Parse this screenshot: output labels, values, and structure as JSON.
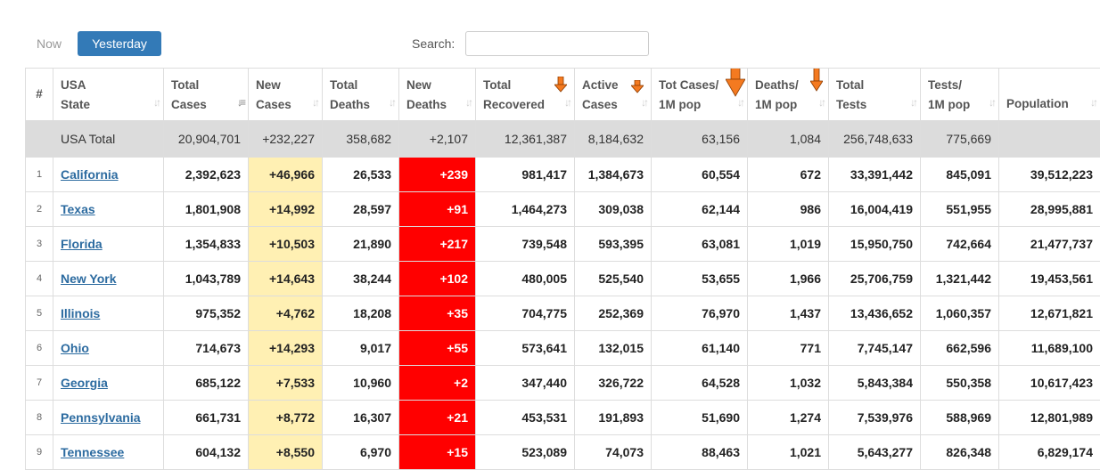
{
  "tabs": {
    "now": "Now",
    "yesterday": "Yesterday"
  },
  "search": {
    "label": "Search:",
    "value": "",
    "placeholder": ""
  },
  "colors": {
    "accent": "#337ab7",
    "new_cases_bg": "#fff0b3",
    "new_deaths_bg": "#ff0000",
    "total_row_bg": "#dcdcdc",
    "annotation_arrow": "#f47a20"
  },
  "table": {
    "headers": [
      {
        "line1": "#",
        "line2": ""
      },
      {
        "line1": "USA",
        "line2": "State"
      },
      {
        "line1": "Total",
        "line2": "Cases"
      },
      {
        "line1": "New",
        "line2": "Cases"
      },
      {
        "line1": "Total",
        "line2": "Deaths"
      },
      {
        "line1": "New",
        "line2": "Deaths"
      },
      {
        "line1": "Total",
        "line2": "Recovered"
      },
      {
        "line1": "Active",
        "line2": "Cases"
      },
      {
        "line1": "Tot Cases/",
        "line2": "1M pop"
      },
      {
        "line1": "Deaths/",
        "line2": "1M pop"
      },
      {
        "line1": "Total",
        "line2": "Tests"
      },
      {
        "line1": "Tests/",
        "line2": "1M pop"
      },
      {
        "line1": "Population",
        "line2": ""
      }
    ],
    "total_row": {
      "label": "USA Total",
      "total_cases": "20,904,701",
      "new_cases": "+232,227",
      "total_deaths": "358,682",
      "new_deaths": "+2,107",
      "total_recovered": "12,361,387",
      "active_cases": "8,184,632",
      "cases_per_1m": "63,156",
      "deaths_per_1m": "1,084",
      "total_tests": "256,748,633",
      "tests_per_1m": "775,669",
      "population": ""
    },
    "rows": [
      {
        "rank": "1",
        "state": "California",
        "total_cases": "2,392,623",
        "new_cases": "+46,966",
        "total_deaths": "26,533",
        "new_deaths": "+239",
        "total_recovered": "981,417",
        "active_cases": "1,384,673",
        "cases_per_1m": "60,554",
        "deaths_per_1m": "672",
        "total_tests": "33,391,442",
        "tests_per_1m": "845,091",
        "population": "39,512,223"
      },
      {
        "rank": "2",
        "state": "Texas",
        "total_cases": "1,801,908",
        "new_cases": "+14,992",
        "total_deaths": "28,597",
        "new_deaths": "+91",
        "total_recovered": "1,464,273",
        "active_cases": "309,038",
        "cases_per_1m": "62,144",
        "deaths_per_1m": "986",
        "total_tests": "16,004,419",
        "tests_per_1m": "551,955",
        "population": "28,995,881"
      },
      {
        "rank": "3",
        "state": "Florida",
        "total_cases": "1,354,833",
        "new_cases": "+10,503",
        "total_deaths": "21,890",
        "new_deaths": "+217",
        "total_recovered": "739,548",
        "active_cases": "593,395",
        "cases_per_1m": "63,081",
        "deaths_per_1m": "1,019",
        "total_tests": "15,950,750",
        "tests_per_1m": "742,664",
        "population": "21,477,737"
      },
      {
        "rank": "4",
        "state": "New York",
        "total_cases": "1,043,789",
        "new_cases": "+14,643",
        "total_deaths": "38,244",
        "new_deaths": "+102",
        "total_recovered": "480,005",
        "active_cases": "525,540",
        "cases_per_1m": "53,655",
        "deaths_per_1m": "1,966",
        "total_tests": "25,706,759",
        "tests_per_1m": "1,321,442",
        "population": "19,453,561"
      },
      {
        "rank": "5",
        "state": "Illinois",
        "total_cases": "975,352",
        "new_cases": "+4,762",
        "total_deaths": "18,208",
        "new_deaths": "+35",
        "total_recovered": "704,775",
        "active_cases": "252,369",
        "cases_per_1m": "76,970",
        "deaths_per_1m": "1,437",
        "total_tests": "13,436,652",
        "tests_per_1m": "1,060,357",
        "population": "12,671,821"
      },
      {
        "rank": "6",
        "state": "Ohio",
        "total_cases": "714,673",
        "new_cases": "+14,293",
        "total_deaths": "9,017",
        "new_deaths": "+55",
        "total_recovered": "573,641",
        "active_cases": "132,015",
        "cases_per_1m": "61,140",
        "deaths_per_1m": "771",
        "total_tests": "7,745,147",
        "tests_per_1m": "662,596",
        "population": "11,689,100"
      },
      {
        "rank": "7",
        "state": "Georgia",
        "total_cases": "685,122",
        "new_cases": "+7,533",
        "total_deaths": "10,960",
        "new_deaths": "+2",
        "total_recovered": "347,440",
        "active_cases": "326,722",
        "cases_per_1m": "64,528",
        "deaths_per_1m": "1,032",
        "total_tests": "5,843,384",
        "tests_per_1m": "550,358",
        "population": "10,617,423"
      },
      {
        "rank": "8",
        "state": "Pennsylvania",
        "total_cases": "661,731",
        "new_cases": "+8,772",
        "total_deaths": "16,307",
        "new_deaths": "+21",
        "total_recovered": "453,531",
        "active_cases": "191,893",
        "cases_per_1m": "51,690",
        "deaths_per_1m": "1,274",
        "total_tests": "7,539,976",
        "tests_per_1m": "588,969",
        "population": "12,801,989"
      },
      {
        "rank": "9",
        "state": "Tennessee",
        "total_cases": "604,132",
        "new_cases": "+8,550",
        "total_deaths": "6,970",
        "new_deaths": "+15",
        "total_recovered": "523,089",
        "active_cases": "74,073",
        "cases_per_1m": "88,463",
        "deaths_per_1m": "1,021",
        "total_tests": "5,643,277",
        "tests_per_1m": "826,348",
        "population": "6,829,174"
      }
    ]
  }
}
